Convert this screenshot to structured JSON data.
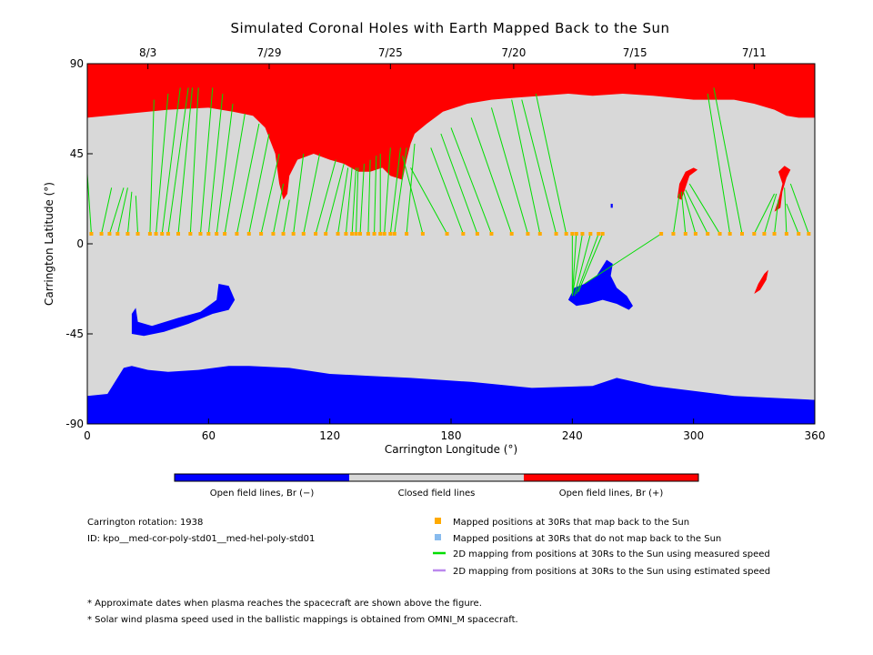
{
  "chart_data": {
    "type": "map",
    "title": "Simulated Coronal Holes with Earth Mapped Back to the Sun",
    "xlabel": "Carrington Longitude (°)",
    "ylabel": "Carrington Latitude (°)",
    "xlim": [
      0,
      360
    ],
    "ylim": [
      -90,
      90
    ],
    "x_ticks": [
      "0",
      "60",
      "120",
      "180",
      "240",
      "300",
      "360"
    ],
    "y_ticks": [
      "90",
      "45",
      "0",
      "-45",
      "-90"
    ],
    "top_axis_dates": [
      {
        "label": "8/3",
        "lon": 30
      },
      {
        "label": "7/29",
        "lon": 90
      },
      {
        "label": "7/25",
        "lon": 150
      },
      {
        "label": "7/20",
        "lon": 211
      },
      {
        "label": "7/15",
        "lon": 271
      },
      {
        "label": "7/11",
        "lon": 330
      }
    ],
    "colorbar": [
      {
        "label": "Open field lines, Br (−)",
        "color": "#0000ff"
      },
      {
        "label": "Closed field lines",
        "color": "#d8d8d8"
      },
      {
        "label": "Open field lines, Br (+)",
        "color": "#ff0000"
      }
    ],
    "regions": [
      {
        "name": "north-polar-hole-positive",
        "polarity": "+",
        "lat_range": [
          60,
          90
        ]
      },
      {
        "name": "south-polar-hole-negative",
        "polarity": "-",
        "lat_range": [
          -90,
          -62
        ]
      },
      {
        "name": "northern-extension-positive",
        "polarity": "+",
        "lon_range": [
          95,
          175
        ],
        "lat_range": [
          24,
          60
        ]
      },
      {
        "name": "low-latitude-hole-negative",
        "polarity": "-",
        "lon_range": [
          237,
          270
        ],
        "lat_range": [
          -32,
          -8
        ]
      },
      {
        "name": "southern-patch-negative",
        "polarity": "-",
        "lon_range": [
          20,
          72
        ],
        "lat_range": [
          -45,
          -20
        ]
      },
      {
        "name": "northern-patch-positive-1",
        "polarity": "+",
        "lon_range": [
          292,
          302
        ],
        "lat_range": [
          23,
          38
        ]
      },
      {
        "name": "northern-patch-positive-2",
        "polarity": "+",
        "lon_range": [
          340,
          348
        ],
        "lat_range": [
          15,
          38
        ]
      },
      {
        "name": "southern-patch-positive",
        "polarity": "+",
        "lon_range": [
          330,
          337
        ],
        "lat_range": [
          -25,
          -13
        ]
      }
    ],
    "mapped_points": {
      "lat": 5,
      "lons": [
        2,
        7,
        11,
        15,
        20,
        25,
        31,
        34,
        37,
        40,
        45,
        51,
        56,
        60,
        64,
        68,
        74,
        80,
        86,
        92,
        97,
        102,
        107,
        113,
        118,
        124,
        128,
        131,
        133,
        135,
        139,
        142,
        145,
        147,
        150,
        152,
        158,
        166,
        178,
        186,
        193,
        200,
        210,
        218,
        224,
        232,
        237,
        240,
        242,
        245,
        249,
        253,
        255,
        284,
        290,
        296,
        301,
        307,
        313,
        318,
        324,
        330,
        335,
        340,
        346,
        352,
        357
      ]
    },
    "mapping_lines": [
      {
        "from": [
          2,
          5
        ],
        "to": [
          0,
          35
        ]
      },
      {
        "from": [
          7,
          5
        ],
        "to": [
          12,
          28
        ]
      },
      {
        "from": [
          11,
          5
        ],
        "to": [
          18,
          28
        ]
      },
      {
        "from": [
          15,
          5
        ],
        "to": [
          20,
          28
        ]
      },
      {
        "from": [
          20,
          5
        ],
        "to": [
          22,
          26
        ]
      },
      {
        "from": [
          25,
          5
        ],
        "to": [
          24,
          24
        ]
      },
      {
        "from": [
          31,
          5
        ],
        "to": [
          33,
          72
        ]
      },
      {
        "from": [
          34,
          5
        ],
        "to": [
          40,
          75
        ]
      },
      {
        "from": [
          37,
          5
        ],
        "to": [
          46,
          78
        ]
      },
      {
        "from": [
          40,
          5
        ],
        "to": [
          50,
          78
        ]
      },
      {
        "from": [
          45,
          5
        ],
        "to": [
          52,
          78
        ]
      },
      {
        "from": [
          51,
          5
        ],
        "to": [
          55,
          78
        ]
      },
      {
        "from": [
          56,
          5
        ],
        "to": [
          62,
          78
        ]
      },
      {
        "from": [
          60,
          5
        ],
        "to": [
          67,
          75
        ]
      },
      {
        "from": [
          64,
          5
        ],
        "to": [
          72,
          70
        ]
      },
      {
        "from": [
          68,
          5
        ],
        "to": [
          78,
          65
        ]
      },
      {
        "from": [
          74,
          5
        ],
        "to": [
          85,
          60
        ]
      },
      {
        "from": [
          80,
          5
        ],
        "to": [
          90,
          55
        ]
      },
      {
        "from": [
          86,
          5
        ],
        "to": [
          95,
          45
        ]
      },
      {
        "from": [
          92,
          5
        ],
        "to": [
          97,
          30
        ]
      },
      {
        "from": [
          97,
          5
        ],
        "to": [
          100,
          22
        ]
      },
      {
        "from": [
          102,
          5
        ],
        "to": [
          107,
          45
        ]
      },
      {
        "from": [
          107,
          5
        ],
        "to": [
          115,
          45
        ]
      },
      {
        "from": [
          113,
          5
        ],
        "to": [
          123,
          42
        ]
      },
      {
        "from": [
          118,
          5
        ],
        "to": [
          127,
          40
        ]
      },
      {
        "from": [
          124,
          5
        ],
        "to": [
          129,
          38
        ]
      },
      {
        "from": [
          128,
          5
        ],
        "to": [
          131,
          38
        ]
      },
      {
        "from": [
          131,
          5
        ],
        "to": [
          133,
          38
        ]
      },
      {
        "from": [
          133,
          5
        ],
        "to": [
          134,
          38
        ]
      },
      {
        "from": [
          135,
          5
        ],
        "to": [
          137,
          40
        ]
      },
      {
        "from": [
          139,
          5
        ],
        "to": [
          140,
          42
        ]
      },
      {
        "from": [
          142,
          5
        ],
        "to": [
          143,
          44
        ]
      },
      {
        "from": [
          145,
          5
        ],
        "to": [
          145,
          45
        ]
      },
      {
        "from": [
          147,
          5
        ],
        "to": [
          150,
          48
        ]
      },
      {
        "from": [
          150,
          5
        ],
        "to": [
          155,
          48
        ]
      },
      {
        "from": [
          152,
          5
        ],
        "to": [
          158,
          48
        ]
      },
      {
        "from": [
          158,
          5
        ],
        "to": [
          162,
          50
        ]
      },
      {
        "from": [
          166,
          5
        ],
        "to": [
          156,
          44
        ]
      },
      {
        "from": [
          178,
          5
        ],
        "to": [
          160,
          38
        ]
      },
      {
        "from": [
          186,
          5
        ],
        "to": [
          170,
          48
        ]
      },
      {
        "from": [
          193,
          5
        ],
        "to": [
          175,
          55
        ]
      },
      {
        "from": [
          200,
          5
        ],
        "to": [
          180,
          58
        ]
      },
      {
        "from": [
          210,
          5
        ],
        "to": [
          190,
          63
        ]
      },
      {
        "from": [
          218,
          5
        ],
        "to": [
          200,
          68
        ]
      },
      {
        "from": [
          224,
          5
        ],
        "to": [
          210,
          72
        ]
      },
      {
        "from": [
          232,
          5
        ],
        "to": [
          215,
          72
        ]
      },
      {
        "from": [
          237,
          5
        ],
        "to": [
          222,
          75
        ]
      },
      {
        "from": [
          240,
          5
        ],
        "to": [
          240,
          -25
        ]
      },
      {
        "from": [
          242,
          5
        ],
        "to": [
          240,
          -26
        ]
      },
      {
        "from": [
          245,
          5
        ],
        "to": [
          240,
          -26
        ]
      },
      {
        "from": [
          249,
          5
        ],
        "to": [
          241,
          -26
        ]
      },
      {
        "from": [
          253,
          5
        ],
        "to": [
          242,
          -25
        ]
      },
      {
        "from": [
          255,
          5
        ],
        "to": [
          243,
          -24
        ]
      },
      {
        "from": [
          284,
          5
        ],
        "to": [
          246,
          -20
        ]
      },
      {
        "from": [
          290,
          5
        ],
        "to": [
          293,
          25
        ]
      },
      {
        "from": [
          296,
          5
        ],
        "to": [
          294,
          26
        ]
      },
      {
        "from": [
          301,
          5
        ],
        "to": [
          295,
          26
        ]
      },
      {
        "from": [
          307,
          5
        ],
        "to": [
          296,
          27
        ]
      },
      {
        "from": [
          313,
          5
        ],
        "to": [
          298,
          30
        ]
      },
      {
        "from": [
          318,
          5
        ],
        "to": [
          307,
          75
        ]
      },
      {
        "from": [
          324,
          5
        ],
        "to": [
          310,
          78
        ]
      },
      {
        "from": [
          330,
          5
        ],
        "to": [
          340,
          25
        ]
      },
      {
        "from": [
          335,
          5
        ],
        "to": [
          341,
          25
        ]
      },
      {
        "from": [
          340,
          5
        ],
        "to": [
          342,
          22
        ]
      },
      {
        "from": [
          346,
          5
        ],
        "to": [
          345,
          28
        ]
      },
      {
        "from": [
          352,
          5
        ],
        "to": [
          346,
          20
        ]
      },
      {
        "from": [
          357,
          5
        ],
        "to": [
          348,
          30
        ]
      }
    ],
    "legend": [
      {
        "label": "Mapped positions at 30Rs that map back to the Sun",
        "marker": "square",
        "color": "#ffaa00"
      },
      {
        "label": "Mapped positions at 30Rs that do not map back to the Sun",
        "marker": "square",
        "color": "#88bbee"
      },
      {
        "label": "2D mapping from positions at 30Rs to the Sun using measured speed",
        "marker": "line",
        "color": "#00dd00"
      },
      {
        "label": "2D mapping from positions at 30Rs to the Sun using estimated speed",
        "marker": "line",
        "color": "#bb88ee"
      }
    ]
  },
  "info": {
    "rotation": "Carrington rotation: 1938",
    "id": "ID: kpo__med-cor-poly-std01__med-hel-poly-std01"
  },
  "footnotes": [
    "* Approximate dates when plasma reaches the spacecraft are shown above the figure.",
    "* Solar wind plasma speed used in the ballistic mappings is obtained from OMNI_M spacecraft."
  ]
}
